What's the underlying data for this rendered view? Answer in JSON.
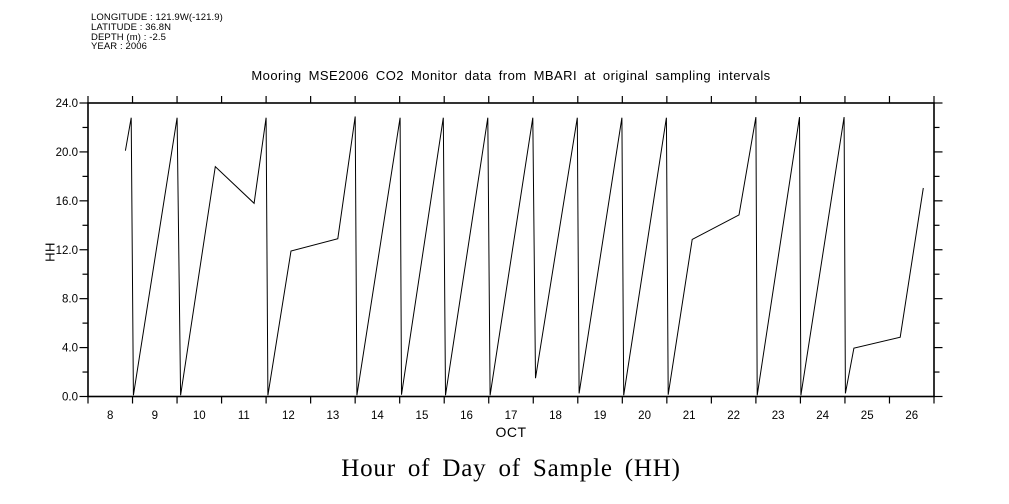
{
  "meta": {
    "line1": "LONGITUDE : 121.9W(-121.9)",
    "line2": "LATITUDE : 36.8N",
    "line3": "DEPTH (m) : -2.5",
    "line4": "YEAR : 2006"
  },
  "title": "Mooring MSE2006 CO2 Monitor data from MBARI at original sampling intervals",
  "bottom_title": "Hour of Day of Sample (HH)",
  "chart_data": {
    "type": "line",
    "title": "Mooring MSE2006 CO2 Monitor data from MBARI at original sampling intervals",
    "xlabel": "OCT",
    "ylabel": "HH",
    "line_color": "#000000",
    "background_color": "#ffffff",
    "grid": false,
    "legend": "none",
    "x_axis": {
      "min": 8,
      "max": 27,
      "tick_step": 1,
      "tick_labels": [
        "8",
        "9",
        "10",
        "11",
        "12",
        "13",
        "14",
        "15",
        "16",
        "17",
        "18",
        "19",
        "20",
        "21",
        "22",
        "23",
        "24",
        "25",
        "26"
      ],
      "label_placement": "centered-between-day-ticks",
      "month": "OCT"
    },
    "y_axis": {
      "min": 0,
      "max": 24,
      "major_step": 4,
      "minor_step": 2,
      "tick_labels": [
        "0.0",
        "4.0",
        "8.0",
        "12.0",
        "16.0",
        "20.0",
        "24.0"
      ]
    },
    "series": [
      {
        "name": "hour-of-day-of-sample",
        "points": [
          [
            8.84,
            20.1
          ],
          [
            8.97,
            22.8
          ],
          [
            9.02,
            0.1
          ],
          [
            10.0,
            22.8
          ],
          [
            10.08,
            0.1
          ],
          [
            10.86,
            18.8
          ],
          [
            11.73,
            15.8
          ],
          [
            12.0,
            22.8
          ],
          [
            12.04,
            0.1
          ],
          [
            12.56,
            11.9
          ],
          [
            13.61,
            12.9
          ],
          [
            14.0,
            22.9
          ],
          [
            14.04,
            0.1
          ],
          [
            15.01,
            22.8
          ],
          [
            15.04,
            0.15
          ],
          [
            15.98,
            22.8
          ],
          [
            16.03,
            0.1
          ],
          [
            16.98,
            22.8
          ],
          [
            17.03,
            0.1
          ],
          [
            17.99,
            22.8
          ],
          [
            18.05,
            1.5
          ],
          [
            18.99,
            22.8
          ],
          [
            19.03,
            0.25
          ],
          [
            19.99,
            22.8
          ],
          [
            20.03,
            0.1
          ],
          [
            20.99,
            22.8
          ],
          [
            21.03,
            0.15
          ],
          [
            21.57,
            12.85
          ],
          [
            22.62,
            14.85
          ],
          [
            23.0,
            22.85
          ],
          [
            23.03,
            0.1
          ],
          [
            23.98,
            22.85
          ],
          [
            24.01,
            0.1
          ],
          [
            24.98,
            22.85
          ],
          [
            25.01,
            0.25
          ],
          [
            25.2,
            3.95
          ],
          [
            26.24,
            4.85
          ],
          [
            26.76,
            17.05
          ]
        ]
      }
    ]
  }
}
